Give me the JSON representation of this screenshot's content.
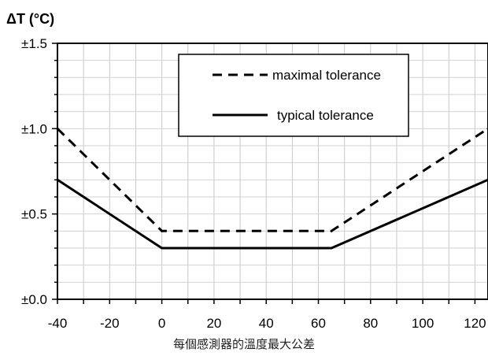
{
  "chart_data": {
    "type": "line",
    "ylabel": "ΔT (°C)",
    "xlabel": "",
    "caption": "每個感測器的溫度最大公差",
    "xlim": [
      -40,
      125
    ],
    "ylim": [
      0,
      1.5
    ],
    "x_ticks": [
      -40,
      -20,
      0,
      20,
      40,
      60,
      80,
      100,
      120
    ],
    "x_tick_labels": [
      "-40",
      "-20",
      "0",
      "20",
      "40",
      "60",
      "80",
      "100",
      "120"
    ],
    "y_ticks": [
      0,
      0.5,
      1.0,
      1.5
    ],
    "y_tick_labels": [
      "±0.0",
      "±0.5",
      "±1.0",
      "±1.5"
    ],
    "grid": true,
    "legend_position": "top-right",
    "series": [
      {
        "name": "maximal tolerance",
        "style": "dashed",
        "color": "#000000",
        "x": [
          -40,
          0,
          65,
          125
        ],
        "y": [
          1.0,
          0.4,
          0.4,
          1.0
        ]
      },
      {
        "name": "typical tolerance",
        "style": "solid",
        "color": "#000000",
        "x": [
          -40,
          0,
          65,
          125
        ],
        "y": [
          0.7,
          0.3,
          0.3,
          0.7
        ]
      }
    ]
  }
}
